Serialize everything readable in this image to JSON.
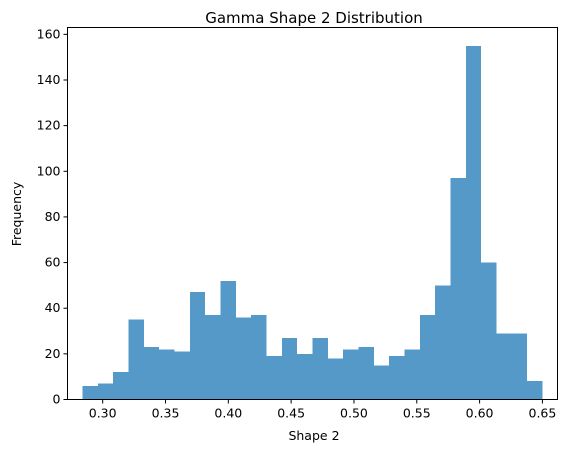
{
  "chart_data": {
    "type": "bar",
    "title": "Gamma Shape 2 Distribution",
    "xlabel": "Shape 2",
    "ylabel": "Frequency",
    "xlim": [
      0.272,
      0.662
    ],
    "ylim": [
      0,
      163
    ],
    "x_ticks": [
      0.3,
      0.35,
      0.4,
      0.45,
      0.5,
      0.55,
      0.6,
      0.65
    ],
    "x_tick_labels": [
      "0.30",
      "0.35",
      "0.40",
      "0.45",
      "0.50",
      "0.55",
      "0.60",
      "0.65"
    ],
    "y_ticks": [
      0,
      20,
      40,
      60,
      80,
      100,
      120,
      140,
      160
    ],
    "y_tick_labels": [
      "0",
      "20",
      "40",
      "60",
      "80",
      "100",
      "120",
      "140",
      "160"
    ],
    "bin_edges": [
      0.284,
      0.2962,
      0.3084,
      0.3206,
      0.3328,
      0.345,
      0.3572,
      0.3694,
      0.3816,
      0.3938,
      0.406,
      0.4182,
      0.4304,
      0.4426,
      0.4548,
      0.467,
      0.4792,
      0.4914,
      0.5036,
      0.5158,
      0.528,
      0.5402,
      0.5524,
      0.5646,
      0.5768,
      0.589,
      0.6012,
      0.6134,
      0.6256,
      0.6378,
      0.65
    ],
    "values": [
      6,
      7,
      12,
      35,
      23,
      22,
      21,
      47,
      37,
      52,
      36,
      37,
      19,
      27,
      20,
      27,
      18,
      22,
      23,
      15,
      19,
      22,
      37,
      50,
      97,
      155,
      60,
      29,
      29,
      8
    ],
    "bar_color": "#5599c8",
    "grid": false,
    "legend": null
  }
}
